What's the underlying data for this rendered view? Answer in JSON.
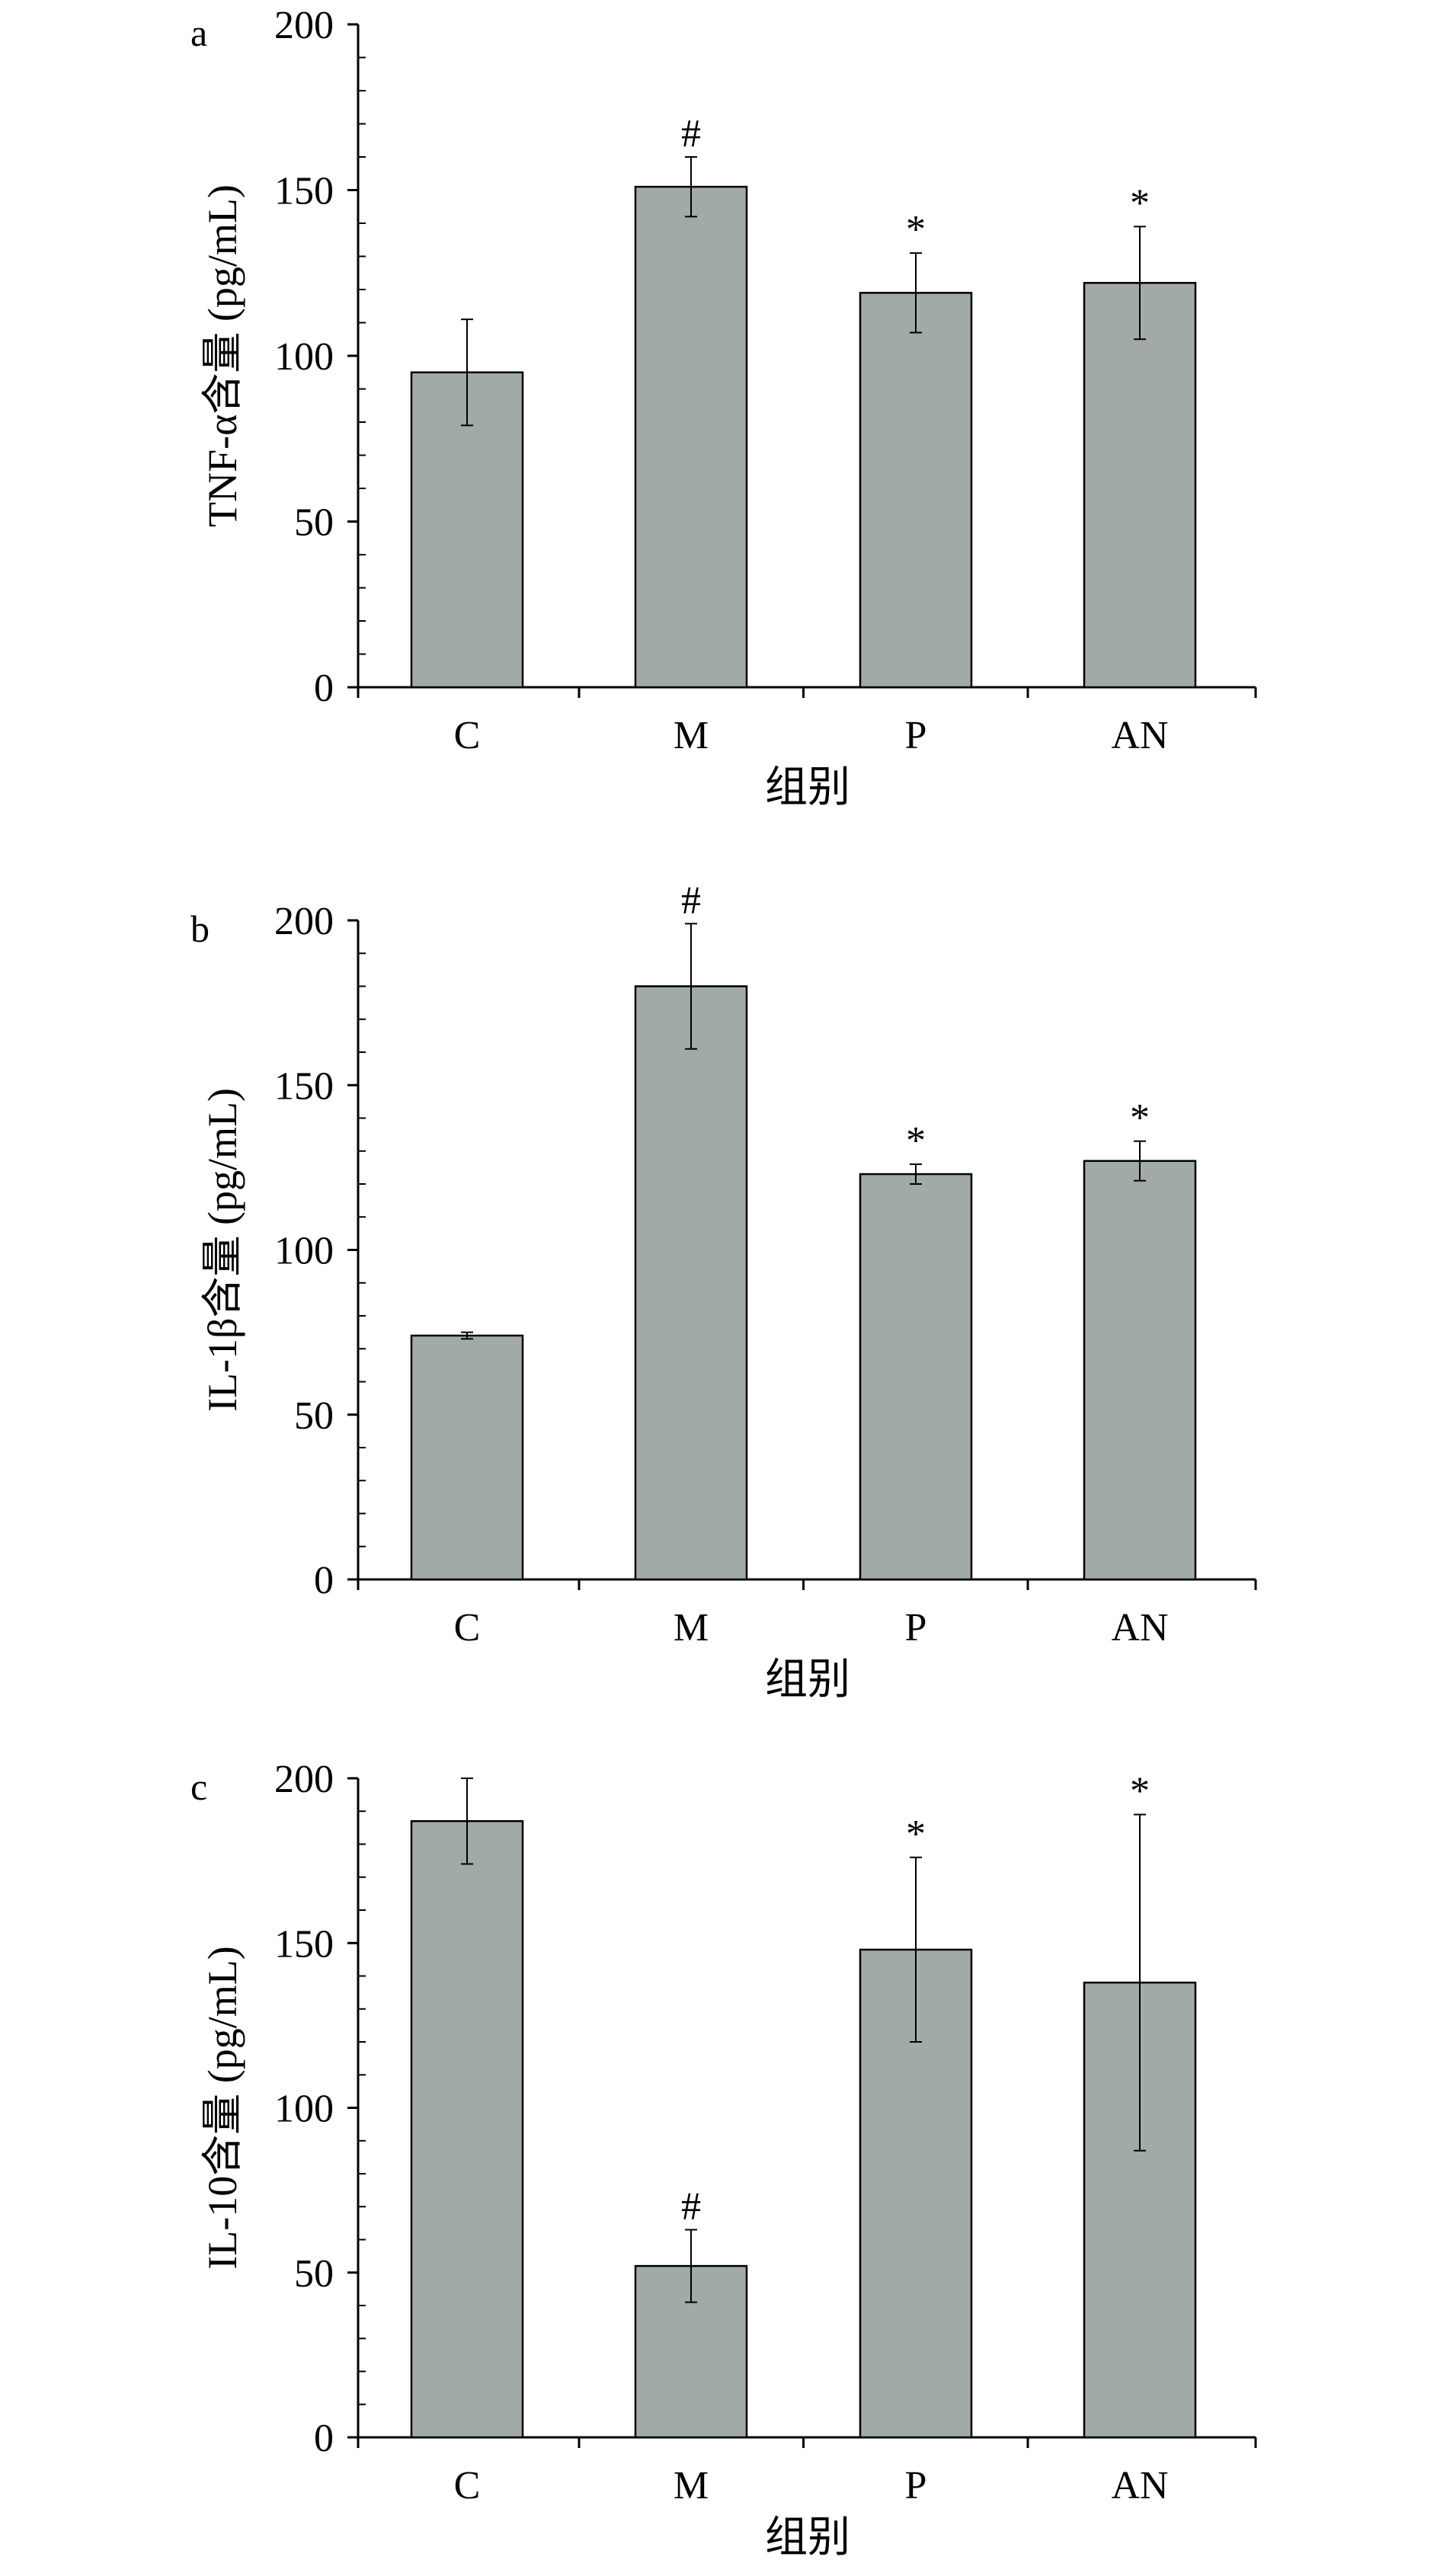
{
  "chart_data": [
    {
      "panel": "a",
      "type": "bar",
      "ylabel": "TNF-α含量 (pg/mL)",
      "xlabel": "组别",
      "categories": [
        "C",
        "M",
        "P",
        "AN"
      ],
      "values": [
        95,
        151,
        119,
        122
      ],
      "errors": [
        16,
        9,
        12,
        17
      ],
      "markers": [
        "",
        "#",
        "*",
        "*"
      ],
      "ylim": [
        0,
        200
      ],
      "yticks": [
        0,
        50,
        100,
        150,
        200
      ]
    },
    {
      "panel": "b",
      "type": "bar",
      "ylabel": "IL-1β含量 (pg/mL)",
      "xlabel": "组别",
      "categories": [
        "C",
        "M",
        "P",
        "AN"
      ],
      "values": [
        74,
        180,
        123,
        127
      ],
      "errors": [
        1,
        19,
        3,
        6
      ],
      "markers": [
        "",
        "#",
        "*",
        "*"
      ],
      "ylim": [
        0,
        200
      ],
      "yticks": [
        0,
        50,
        100,
        150,
        200
      ]
    },
    {
      "panel": "c",
      "type": "bar",
      "ylabel": "IL-10含量 (pg/mL)",
      "xlabel": "组别",
      "categories": [
        "C",
        "M",
        "P",
        "AN"
      ],
      "values": [
        187,
        52,
        148,
        138
      ],
      "errors": [
        13,
        11,
        28,
        51
      ],
      "markers": [
        "",
        "#",
        "*",
        "*"
      ],
      "ylim": [
        0,
        200
      ],
      "yticks": [
        0,
        50,
        100,
        150,
        200
      ]
    }
  ],
  "colors": {
    "bar_fill": "#a1aaa7",
    "bar_stroke": "#000000",
    "axis": "#000000"
  }
}
